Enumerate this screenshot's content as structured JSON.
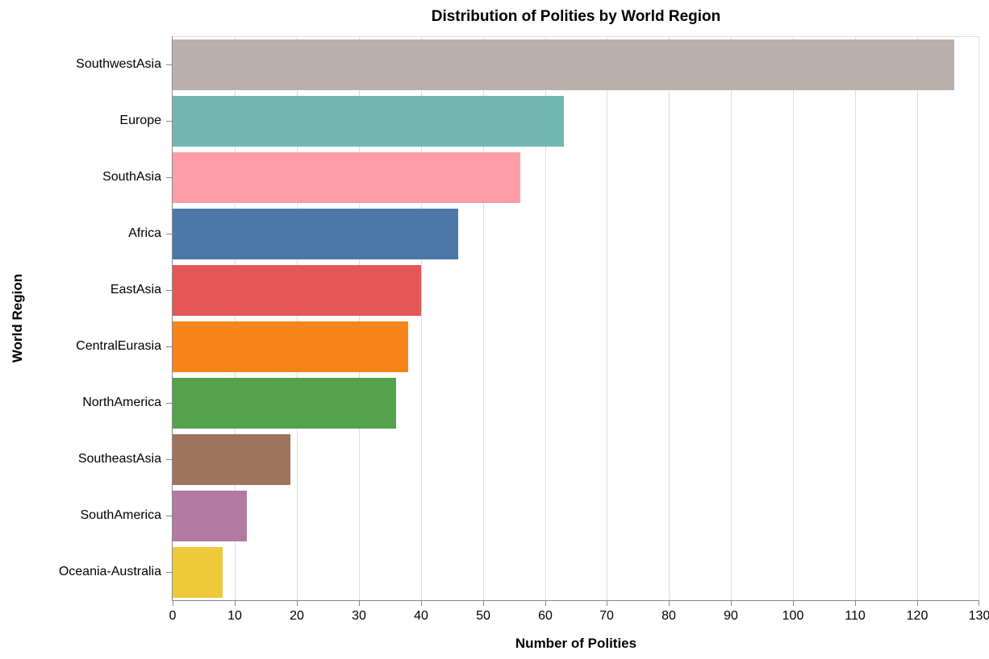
{
  "chart_data": {
    "type": "bar",
    "orientation": "horizontal",
    "title": "Distribution of Polities by World Region",
    "xlabel": "Number of Polities",
    "ylabel": "World Region",
    "xlim": [
      0,
      130
    ],
    "xticks": [
      0,
      10,
      20,
      30,
      40,
      50,
      60,
      70,
      80,
      90,
      100,
      110,
      120,
      130
    ],
    "grid": true,
    "legend": "none",
    "categories": [
      "SouthwestAsia",
      "Europe",
      "SouthAsia",
      "Africa",
      "EastAsia",
      "CentralEurasia",
      "NorthAmerica",
      "SoutheastAsia",
      "SouthAmerica",
      "Oceania-Australia"
    ],
    "values": [
      126,
      63,
      56,
      46,
      40,
      38,
      36,
      19,
      12,
      8
    ],
    "colors": [
      "#bab0ac",
      "#72b7b2",
      "#ff9da6",
      "#4c78a8",
      "#e45756",
      "#f58518",
      "#54a24b",
      "#9d755d",
      "#b279a2",
      "#eeca3b"
    ]
  }
}
